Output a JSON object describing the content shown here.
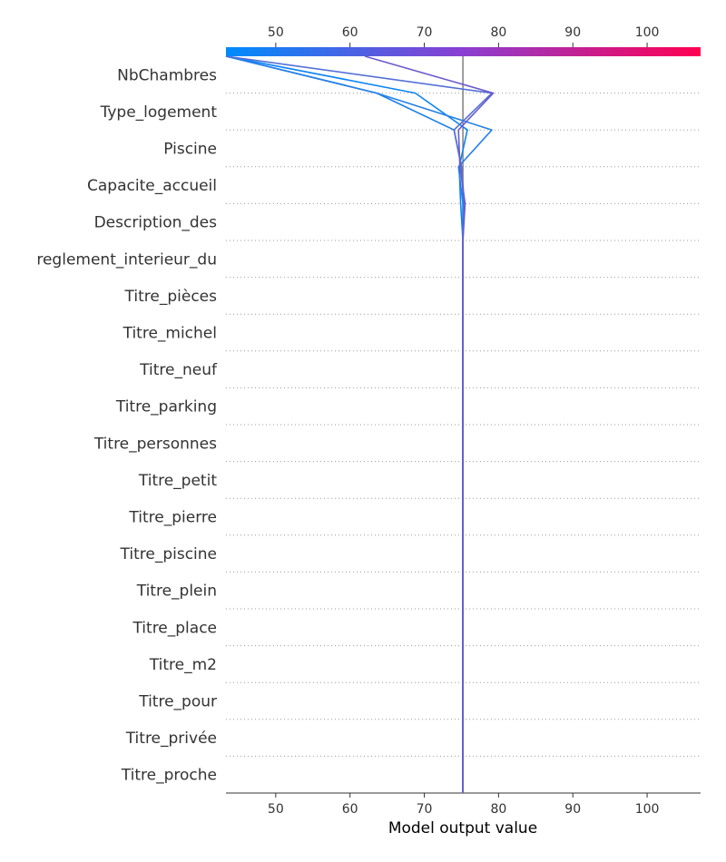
{
  "chart_data": {
    "type": "line",
    "xlabel": "Model output value",
    "xlim": [
      43.3,
      107.2
    ],
    "x_ticks": [
      50,
      60,
      70,
      80,
      90,
      100
    ],
    "x_tick_labels": [
      "50",
      "60",
      "70",
      "80",
      "90",
      "100"
    ],
    "base_value": 75.2,
    "colorbar": {
      "range": [
        43.3,
        107.2
      ],
      "colors": [
        "#008bfb",
        "#8a3fd0",
        "#ff0052"
      ]
    },
    "features": [
      "NbChambres",
      "Type_logement",
      "Piscine",
      "Capacite_accueil",
      "Description_des",
      "reglement_interieur_du",
      "Titre_pièces",
      "Titre_michel",
      "Titre_neuf",
      "Titre_parking",
      "Titre_personnes",
      "Titre_petit",
      "Titre_pierre",
      "Titre_piscine",
      "Titre_plein",
      "Titre_place",
      "Titre_m2",
      "Titre_pour",
      "Titre_privée",
      "Titre_proche"
    ],
    "grid": true,
    "series": [
      {
        "output": 43.3,
        "color": "#0a84f5",
        "cumulative": [
          75.2,
          75.2,
          75.2,
          75.2,
          75.2,
          75.2,
          75.2,
          75.2,
          75.2,
          75.2,
          75.2,
          75.2,
          75.2,
          75.2,
          75.2,
          75.2,
          74.9,
          74.7,
          75.8,
          68.8,
          43.3
        ]
      },
      {
        "output": 43.3,
        "color": "#1a7fe8",
        "cumulative": [
          75.2,
          75.2,
          75.2,
          75.2,
          75.2,
          75.2,
          75.2,
          75.2,
          75.2,
          75.2,
          75.2,
          75.2,
          75.2,
          75.2,
          75.2,
          75.2,
          75.3,
          75.0,
          74.0,
          63.6,
          43.3
        ]
      },
      {
        "output": 43.3,
        "color": "#2480e8",
        "cumulative": [
          75.2,
          75.2,
          75.2,
          75.2,
          75.2,
          75.2,
          75.2,
          75.2,
          75.2,
          75.2,
          75.2,
          75.2,
          75.2,
          75.2,
          75.2,
          75.2,
          75.2,
          74.6,
          79.1,
          63.6,
          43.3
        ]
      },
      {
        "output": 43.3,
        "color": "#5470d6",
        "cumulative": [
          75.2,
          75.2,
          75.2,
          75.2,
          75.2,
          75.2,
          75.2,
          75.2,
          75.2,
          75.2,
          75.2,
          75.2,
          75.2,
          75.2,
          75.2,
          75.2,
          75.4,
          75.0,
          74.0,
          79.1,
          43.3
        ]
      },
      {
        "output": 62.0,
        "color": "#6a5acd",
        "cumulative": [
          75.2,
          75.2,
          75.2,
          75.2,
          75.2,
          75.2,
          75.2,
          75.2,
          75.2,
          75.2,
          75.2,
          75.2,
          75.2,
          75.2,
          75.2,
          75.2,
          75.5,
          74.8,
          74.6,
          79.3,
          62.0
        ]
      }
    ]
  }
}
